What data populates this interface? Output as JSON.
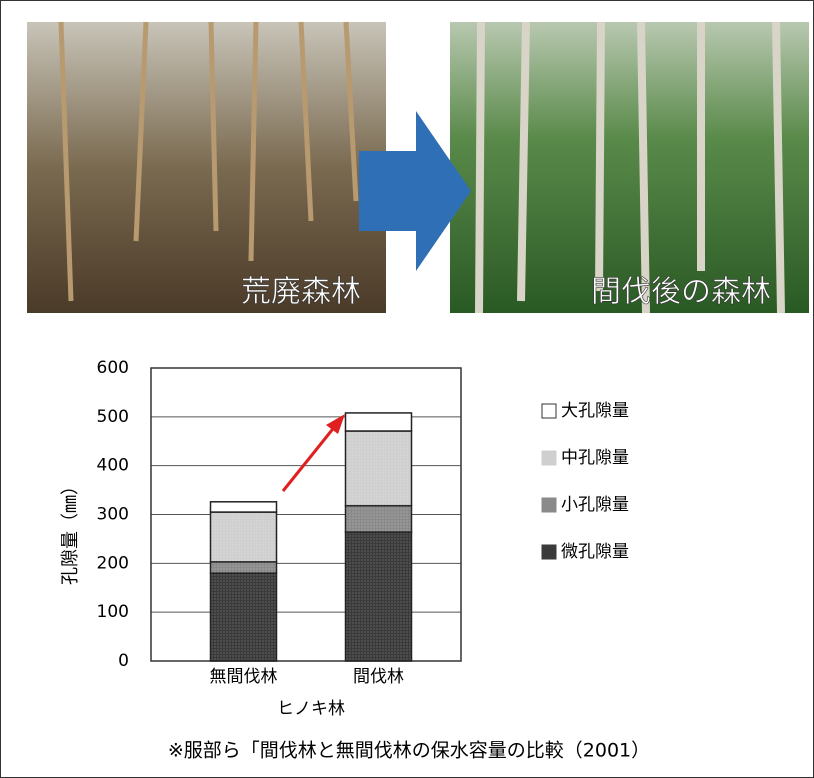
{
  "photos": {
    "left_label": "荒廃森林",
    "right_label": "間伐後の森林"
  },
  "citation": "※服部ら「間伐林と無間伐林の保水容量の比較（2001）",
  "chart_data": {
    "type": "bar",
    "stacked": true,
    "y_label": "孔隙量（㎜）",
    "x_label": "ヒノキ林",
    "categories": [
      "無間伐林",
      "間伐林"
    ],
    "series": [
      {
        "name": "微孔隙量",
        "color": "#3a3a3a",
        "values": [
          180,
          264
        ]
      },
      {
        "name": "小孔隙量",
        "color": "#8a8a8a",
        "values": [
          23,
          54
        ]
      },
      {
        "name": "中孔隙量",
        "color": "#cfcfcf",
        "values": [
          102,
          153
        ]
      },
      {
        "name": "大孔隙量",
        "color": "#ffffff",
        "values": [
          21,
          37
        ]
      }
    ],
    "ylim": [
      0,
      600
    ],
    "yticks": [
      0,
      100,
      200,
      300,
      400,
      500,
      600
    ],
    "grid": true
  }
}
